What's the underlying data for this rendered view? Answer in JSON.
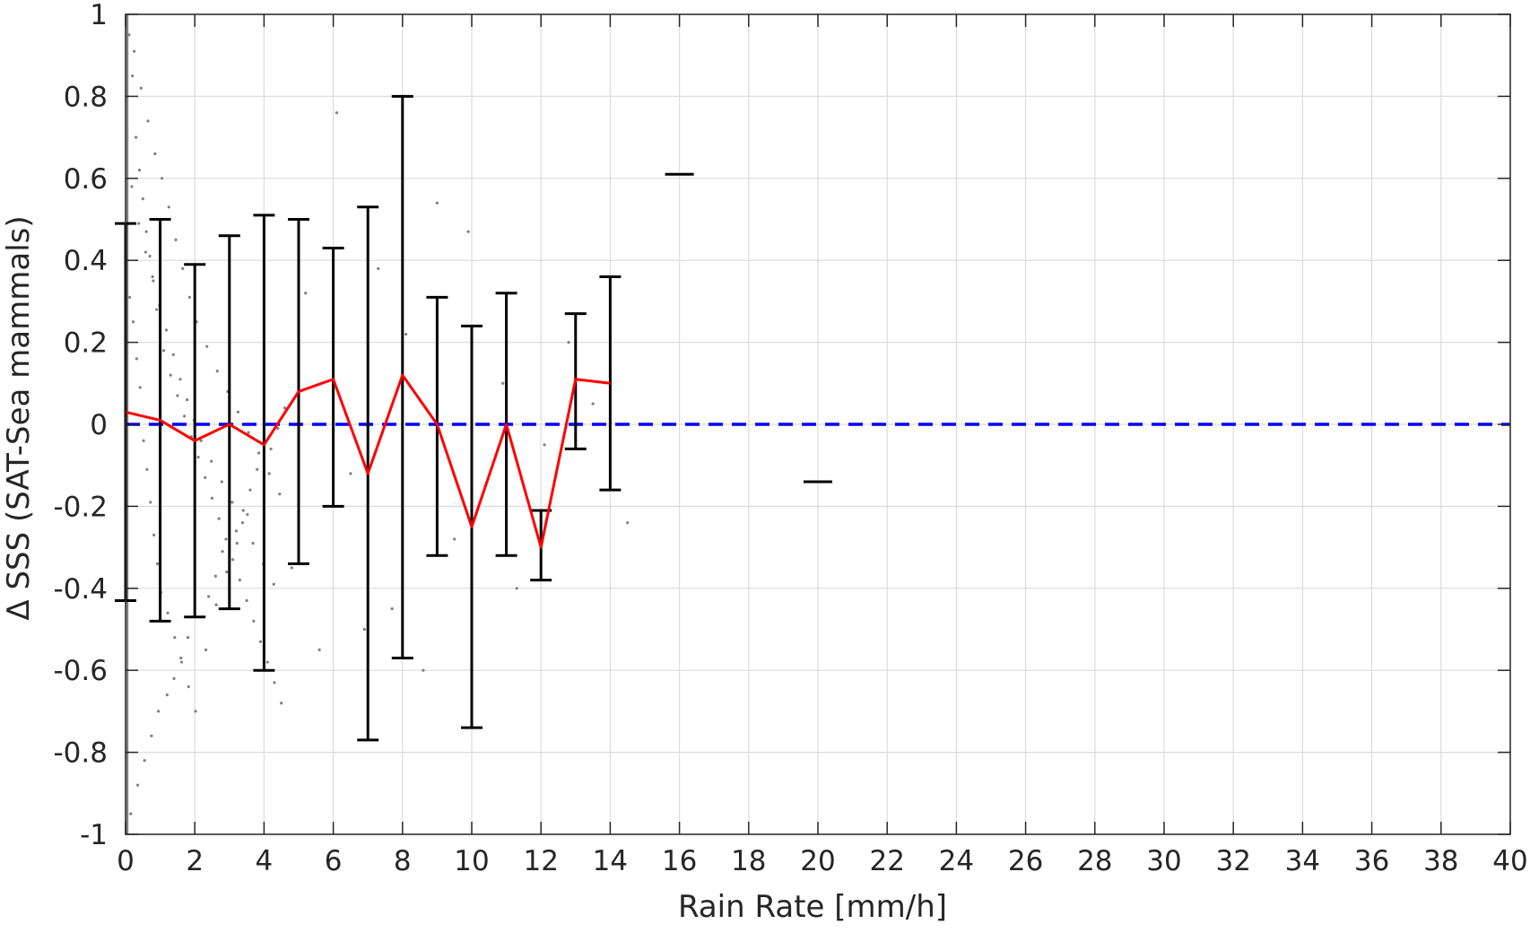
{
  "chart_data": {
    "type": "line",
    "title": "",
    "xlabel": "Rain Rate [mm/h]",
    "ylabel": "Δ SSS (SAT-Sea mammals)",
    "xlim": [
      0,
      40
    ],
    "ylim": [
      -1,
      1
    ],
    "grid": true,
    "xticks": [
      0,
      2,
      4,
      6,
      8,
      10,
      12,
      14,
      16,
      18,
      20,
      22,
      24,
      26,
      28,
      30,
      32,
      34,
      36,
      38,
      40
    ],
    "yticks": [
      -1,
      -0.8,
      -0.6,
      -0.4,
      -0.2,
      0,
      0.2,
      0.4,
      0.6,
      0.8,
      1
    ],
    "xtick_labels": [
      "0",
      "2",
      "4",
      "6",
      "8",
      "10",
      "12",
      "14",
      "16",
      "18",
      "20",
      "22",
      "24",
      "26",
      "28",
      "30",
      "32",
      "34",
      "36",
      "38",
      "40"
    ],
    "ytick_labels": [
      "-1",
      "-0.8",
      "-0.6",
      "-0.4",
      "-0.2",
      "0",
      "0.2",
      "0.4",
      "0.6",
      "0.8",
      "1"
    ],
    "colors": {
      "mean_line": "#ff0000",
      "reference_line": "#0000ff",
      "error_bars": "#000000",
      "scatter": "#808080",
      "grid": "#dcdcdc",
      "axes": "#262626"
    },
    "reference_line": {
      "y": 0,
      "style": "dashed"
    },
    "mean": {
      "x": [
        0,
        1,
        2,
        3,
        4,
        5,
        6,
        7,
        8,
        9,
        10,
        11,
        12,
        13,
        14
      ],
      "y": [
        0.03,
        0.01,
        -0.04,
        0.0,
        -0.05,
        0.08,
        0.11,
        -0.12,
        0.12,
        0.0,
        -0.25,
        0.0,
        -0.3,
        0.11,
        0.1
      ]
    },
    "error_bars": [
      {
        "x": 0,
        "upper": 0.49,
        "lower": -0.43
      },
      {
        "x": 1,
        "upper": 0.5,
        "lower": -0.48
      },
      {
        "x": 2,
        "upper": 0.39,
        "lower": -0.47
      },
      {
        "x": 3,
        "upper": 0.46,
        "lower": -0.45
      },
      {
        "x": 4,
        "upper": 0.51,
        "lower": -0.6
      },
      {
        "x": 5,
        "upper": 0.5,
        "lower": -0.34
      },
      {
        "x": 6,
        "upper": 0.43,
        "lower": -0.2
      },
      {
        "x": 7,
        "upper": 0.53,
        "lower": -0.77
      },
      {
        "x": 8,
        "upper": 0.8,
        "lower": -0.57
      },
      {
        "x": 9,
        "upper": 0.31,
        "lower": -0.32
      },
      {
        "x": 10,
        "upper": 0.24,
        "lower": -0.74
      },
      {
        "x": 11,
        "upper": 0.32,
        "lower": -0.32
      },
      {
        "x": 12,
        "upper": -0.21,
        "lower": -0.38
      },
      {
        "x": 13,
        "upper": 0.27,
        "lower": -0.06
      },
      {
        "x": 14,
        "upper": 0.36,
        "lower": -0.16
      }
    ],
    "single_points": [
      {
        "x": 16,
        "y": 0.61
      },
      {
        "x": 20,
        "y": -0.14
      }
    ],
    "scatter": {
      "x": [
        0.1,
        0.2,
        0.3,
        0.4,
        0.5,
        0.6,
        0.7,
        0.8,
        0.9,
        1.0,
        1.1,
        1.3,
        1.5,
        1.7,
        1.9,
        2.1,
        2.3,
        2.5,
        2.7,
        2.9,
        3.1,
        3.3,
        3.5,
        3.7,
        3.9,
        4.1,
        4.3,
        4.5,
        4.8,
        5.2,
        5.6,
        6.1,
        6.5,
        6.9,
        7.3,
        7.7,
        8.1,
        8.6,
        9.0,
        9.5,
        9.9,
        10.4,
        10.9,
        11.3,
        12.1,
        12.8,
        13.5,
        14.0,
        14.5,
        0.15,
        0.35,
        0.55,
        0.75,
        0.95,
        1.2,
        1.4,
        1.6,
        1.8,
        2.2,
        2.4,
        2.6,
        2.8,
        3.2,
        3.4,
        3.6,
        3.8,
        4.2,
        4.4,
        4.6,
        5.0,
        0.25,
        0.45,
        0.65,
        0.85,
        1.05,
        1.25,
        1.45,
        1.65,
        1.85,
        2.05,
        2.35,
        2.65,
        2.95,
        3.25,
        3.55,
        3.85,
        4.15,
        4.45,
        0.05,
        0.12,
        0.22,
        0.32,
        0.42,
        0.52,
        0.62,
        0.72,
        0.82,
        0.92,
        1.02,
        1.22,
        1.42,
        1.62,
        1.82,
        2.02,
        2.32,
        2.62,
        2.92,
        3.22,
        3.52,
        0.18,
        0.38,
        0.58,
        0.78,
        0.98,
        1.18,
        1.38,
        1.58,
        1.78,
        1.98,
        2.18,
        2.48,
        2.78,
        3.08,
        3.38,
        3.68,
        3.98,
        4.28
      ],
      "y": [
        0.95,
        0.85,
        0.7,
        0.62,
        0.55,
        0.47,
        0.41,
        0.35,
        0.28,
        0.22,
        0.18,
        0.12,
        0.07,
        0.02,
        -0.03,
        -0.08,
        -0.13,
        -0.18,
        -0.23,
        -0.28,
        -0.33,
        -0.38,
        -0.43,
        -0.48,
        -0.53,
        -0.58,
        -0.63,
        -0.68,
        -0.35,
        0.32,
        -0.55,
        0.76,
        -0.12,
        -0.5,
        0.38,
        -0.45,
        0.22,
        -0.6,
        0.54,
        -0.28,
        0.47,
        -0.15,
        0.1,
        -0.4,
        -0.05,
        0.2,
        0.05,
        0.12,
        -0.24,
        -0.95,
        -0.88,
        -0.82,
        -0.76,
        -0.7,
        -0.66,
        -0.62,
        -0.57,
        -0.52,
        -0.47,
        -0.42,
        -0.37,
        -0.31,
        -0.26,
        -0.21,
        -0.16,
        -0.11,
        -0.06,
        -0.01,
        0.04,
        0.09,
        0.91,
        0.82,
        0.74,
        0.66,
        0.6,
        0.53,
        0.45,
        0.38,
        0.31,
        0.25,
        0.19,
        0.13,
        0.08,
        0.03,
        -0.02,
        -0.07,
        -0.12,
        -0.17,
        0.4,
        0.31,
        0.25,
        0.16,
        0.09,
        -0.04,
        -0.11,
        -0.19,
        -0.27,
        -0.34,
        -0.41,
        -0.46,
        -0.52,
        -0.58,
        -0.64,
        -0.7,
        -0.55,
        -0.44,
        -0.36,
        -0.29,
        -0.22,
        0.58,
        0.49,
        0.42,
        0.36,
        0.29,
        0.23,
        0.17,
        0.11,
        0.06,
        0.01,
        -0.04,
        -0.09,
        -0.14,
        -0.19,
        -0.24,
        -0.29,
        -0.34,
        -0.39
      ]
    }
  }
}
